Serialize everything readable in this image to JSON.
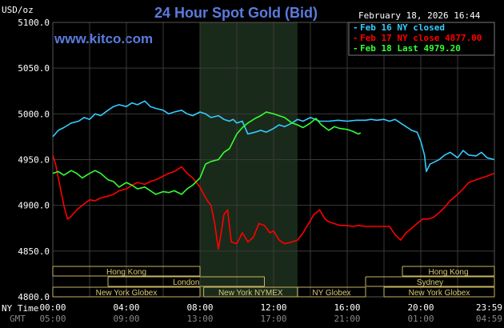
{
  "title": "24 Hour Spot Gold (Bid)",
  "date_time": "February 18, 2026 16:44",
  "website": "www.kitco.com",
  "unit_label": "USD/oz",
  "legend": [
    {
      "label": "Feb 16 NY closed",
      "color": "#33ccff"
    },
    {
      "label": "Feb 17 NY close 4877.00",
      "color": "#ff0000"
    },
    {
      "label": "Feb 18 Last 4979.20",
      "color": "#33ff33"
    }
  ],
  "axis_row_labels": {
    "ny_time": "NY Time",
    "gmt": "GMT"
  },
  "chart_data": {
    "type": "line",
    "ylim": [
      4800,
      5100
    ],
    "xlim_hours": [
      0,
      24
    ],
    "y_ticks": [
      "5100.0",
      "5050.0",
      "5000.0",
      "4950.0",
      "4900.0",
      "4850.0",
      "4800.0"
    ],
    "x_ticks_ny": [
      "00:00",
      "04:00",
      "08:00",
      "12:00",
      "16:00",
      "20:00",
      "23:59"
    ],
    "x_ticks_gmt": [
      "05:00",
      "09:00",
      "13:00",
      "17:00",
      "21:00",
      "01:00",
      "04:59"
    ],
    "highlight_hours": [
      8,
      13.3
    ],
    "grid": true,
    "legend_position": "top-right",
    "sessions": [
      {
        "label": "Hong Kong",
        "start": 0,
        "end": 8.0,
        "row": 0
      },
      {
        "label": "Hong Kong",
        "start": 19.0,
        "end": 24,
        "row": 0
      },
      {
        "label": "London",
        "start": 3.0,
        "end": 11.5,
        "row": 1
      },
      {
        "label": "Sydney",
        "start": 17.0,
        "end": 24,
        "row": 1
      },
      {
        "label": "New York Globex",
        "start": 0,
        "end": 8.0,
        "row": 2
      },
      {
        "label": "New York NYMEX",
        "start": 8.2,
        "end": 13.3,
        "row": 2
      },
      {
        "label": "NY Globex",
        "start": 13.3,
        "end": 17.0,
        "row": 2
      },
      {
        "label": "New York Globex",
        "start": 18.0,
        "end": 24,
        "row": 2
      }
    ],
    "series": [
      {
        "name": "Feb 16 NY closed",
        "color": "#33ccff",
        "x": [
          0,
          0.3,
          0.6,
          1.0,
          1.4,
          1.7,
          2.0,
          2.3,
          2.6,
          3.0,
          3.3,
          3.6,
          4.0,
          4.3,
          4.6,
          5.0,
          5.3,
          5.6,
          6.0,
          6.3,
          6.6,
          7.0,
          7.3,
          7.6,
          8.0,
          8.3,
          8.6,
          9.0,
          9.3,
          9.6,
          9.8,
          10.0,
          10.3,
          10.6,
          11.0,
          11.3,
          11.6,
          12.0,
          12.3,
          12.6,
          13.0,
          13.3,
          13.6,
          14.0,
          14.5,
          15.0,
          15.5,
          16.0,
          16.5,
          17.0,
          17.3,
          17.6,
          18.0,
          18.3,
          18.6,
          18.9,
          19.2,
          19.5,
          19.8,
          20.0,
          20.2,
          20.3,
          20.5,
          20.8,
          21.0,
          21.3,
          21.6,
          22.0,
          22.3,
          22.6,
          23.0,
          23.3,
          23.6,
          23.99
        ],
        "y": [
          4975,
          4982,
          4985,
          4990,
          4992,
          4996,
          4994,
          5000,
          4998,
          5004,
          5008,
          5010,
          5008,
          5012,
          5010,
          5014,
          5008,
          5006,
          5004,
          5000,
          5002,
          5004,
          5000,
          4998,
          5002,
          5000,
          4996,
          4998,
          4994,
          4992,
          4994,
          4990,
          4992,
          4978,
          4980,
          4982,
          4980,
          4984,
          4988,
          4986,
          4990,
          4994,
          4992,
          4996,
          4992,
          4992,
          4993,
          4992,
          4993,
          4993,
          4994,
          4993,
          4994,
          4992,
          4994,
          4990,
          4986,
          4982,
          4980,
          4970,
          4955,
          4937,
          4945,
          4948,
          4950,
          4955,
          4958,
          4952,
          4960,
          4955,
          4954,
          4958,
          4952,
          4950
        ]
      },
      {
        "name": "Feb 17 NY close 4877.00",
        "color": "#ff0000",
        "x": [
          0,
          0.15,
          0.4,
          0.6,
          0.8,
          1.0,
          1.3,
          1.6,
          2.0,
          2.3,
          2.6,
          3.0,
          3.3,
          3.6,
          4.0,
          4.3,
          4.6,
          5.0,
          5.3,
          5.6,
          6.0,
          6.3,
          6.6,
          7.0,
          7.3,
          7.6,
          8.0,
          8.2,
          8.4,
          8.6,
          8.8,
          9.0,
          9.15,
          9.3,
          9.5,
          9.7,
          10.0,
          10.3,
          10.6,
          10.9,
          11.2,
          11.5,
          11.8,
          12.0,
          12.3,
          12.6,
          13.0,
          13.3,
          13.6,
          13.9,
          14.2,
          14.5,
          14.8,
          15.0,
          15.3,
          15.6,
          16.0,
          16.3,
          16.6,
          17.0,
          17.5,
          18.0,
          18.3,
          18.6,
          18.9,
          19.2,
          19.5,
          19.8,
          20.1,
          20.4,
          20.7,
          21.0,
          21.3,
          21.6,
          22.0,
          22.3,
          22.6,
          23.0,
          23.3,
          23.6,
          23.99
        ],
        "y": [
          4955,
          4945,
          4920,
          4900,
          4885,
          4888,
          4895,
          4900,
          4906,
          4905,
          4908,
          4910,
          4912,
          4916,
          4918,
          4922,
          4925,
          4923,
          4926,
          4928,
          4932,
          4935,
          4937,
          4942,
          4935,
          4930,
          4920,
          4912,
          4905,
          4900,
          4880,
          4852,
          4870,
          4890,
          4895,
          4860,
          4858,
          4870,
          4860,
          4865,
          4880,
          4878,
          4870,
          4872,
          4862,
          4858,
          4860,
          4862,
          4870,
          4880,
          4890,
          4895,
          4885,
          4882,
          4880,
          4878,
          4878,
          4877,
          4878,
          4877,
          4877,
          4877,
          4877,
          4868,
          4862,
          4870,
          4875,
          4880,
          4885,
          4885,
          4887,
          4892,
          4898,
          4905,
          4912,
          4918,
          4925,
          4928,
          4930,
          4932,
          4935
        ]
      },
      {
        "name": "Feb 18 Last 4979.20",
        "color": "#33ff33",
        "x": [
          0,
          0.3,
          0.6,
          1.0,
          1.3,
          1.6,
          2.0,
          2.3,
          2.6,
          3.0,
          3.3,
          3.6,
          4.0,
          4.3,
          4.6,
          5.0,
          5.3,
          5.6,
          6.0,
          6.3,
          6.6,
          7.0,
          7.3,
          7.6,
          8.0,
          8.3,
          8.6,
          9.0,
          9.3,
          9.6,
          10.0,
          10.3,
          10.6,
          11.0,
          11.3,
          11.6,
          12.0,
          12.3,
          12.6,
          13.0,
          13.3,
          13.6,
          14.0,
          14.3,
          14.6,
          15.0,
          15.3,
          15.6,
          16.0,
          16.3,
          16.6,
          16.73
        ],
        "y": [
          4935,
          4937,
          4933,
          4938,
          4935,
          4930,
          4935,
          4938,
          4935,
          4928,
          4926,
          4920,
          4925,
          4922,
          4918,
          4920,
          4916,
          4912,
          4915,
          4914,
          4916,
          4912,
          4918,
          4922,
          4930,
          4945,
          4948,
          4950,
          4958,
          4962,
          4978,
          4985,
          4990,
          4995,
          4998,
          5002,
          5000,
          4998,
          4996,
          4990,
          4988,
          4985,
          4990,
          4995,
          4988,
          4982,
          4986,
          4984,
          4983,
          4981,
          4978,
          4979.2
        ]
      }
    ]
  }
}
